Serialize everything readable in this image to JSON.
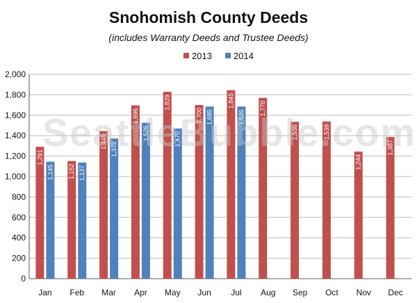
{
  "chart_data": {
    "type": "bar",
    "title": "Snohomish County Deeds",
    "subtitle": "(includes Warranty Deeds and Trustee Deeds)",
    "categories": [
      "Jan",
      "Feb",
      "Mar",
      "Apr",
      "May",
      "Jun",
      "Jul",
      "Aug",
      "Sep",
      "Oct",
      "Nov",
      "Dec"
    ],
    "series": [
      {
        "name": "2013",
        "color": "#c0504d",
        "values": [
          1291,
          1152,
          1445,
          1696,
          1829,
          1700,
          1845,
          1770,
          1536,
          1539,
          1244,
          1387
        ],
        "labels": [
          "1,291",
          "1,152",
          "1,445",
          "1,696",
          "1,829",
          "1,700",
          "1,845",
          "1,770",
          "1,536",
          "1,539",
          "1,244",
          "1,387"
        ]
      },
      {
        "name": "2014",
        "color": "#4f81bd",
        "values": [
          1145,
          1137,
          1372,
          1526,
          1470,
          1685,
          1685,
          null,
          null,
          null,
          null,
          null
        ],
        "labels": [
          "1,145",
          "1,137",
          "1,372",
          "1,526",
          "1,470",
          "1,685",
          "1,685",
          null,
          null,
          null,
          null,
          null
        ]
      }
    ],
    "ylim": [
      0,
      2000
    ],
    "yticks": [
      0,
      200,
      400,
      600,
      800,
      1000,
      1200,
      1400,
      1600,
      1800,
      2000
    ],
    "ytick_labels": [
      "0",
      "200",
      "400",
      "600",
      "800",
      "1,000",
      "1,200",
      "1,400",
      "1,600",
      "1,800",
      "2,000"
    ],
    "grid": true,
    "legend_position": "top-center",
    "xlabel": "",
    "ylabel": "",
    "watermark": "SeattleBubble.com"
  }
}
